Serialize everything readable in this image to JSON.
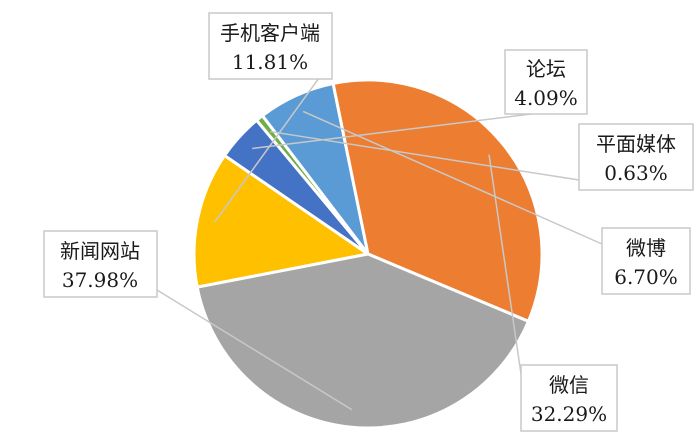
{
  "chart_data": {
    "type": "pie",
    "title": "",
    "slices": [
      {
        "label": "手机客户端",
        "value": 11.81,
        "display": "11.81%",
        "color": "#FFC000"
      },
      {
        "label": "论坛",
        "value": 4.09,
        "display": "4.09%",
        "color": "#4472C4"
      },
      {
        "label": "平面媒体",
        "value": 0.63,
        "display": "0.63%",
        "color": "#70AD47"
      },
      {
        "label": "微博",
        "value": 6.7,
        "display": "6.70%",
        "color": "#5B9BD5"
      },
      {
        "label": "微信",
        "value": 32.29,
        "display": "32.29%",
        "color": "#ED7D31"
      },
      {
        "label": "新闻网站",
        "value": 37.98,
        "display": "37.98%",
        "color": "#A5A5A5"
      }
    ]
  }
}
